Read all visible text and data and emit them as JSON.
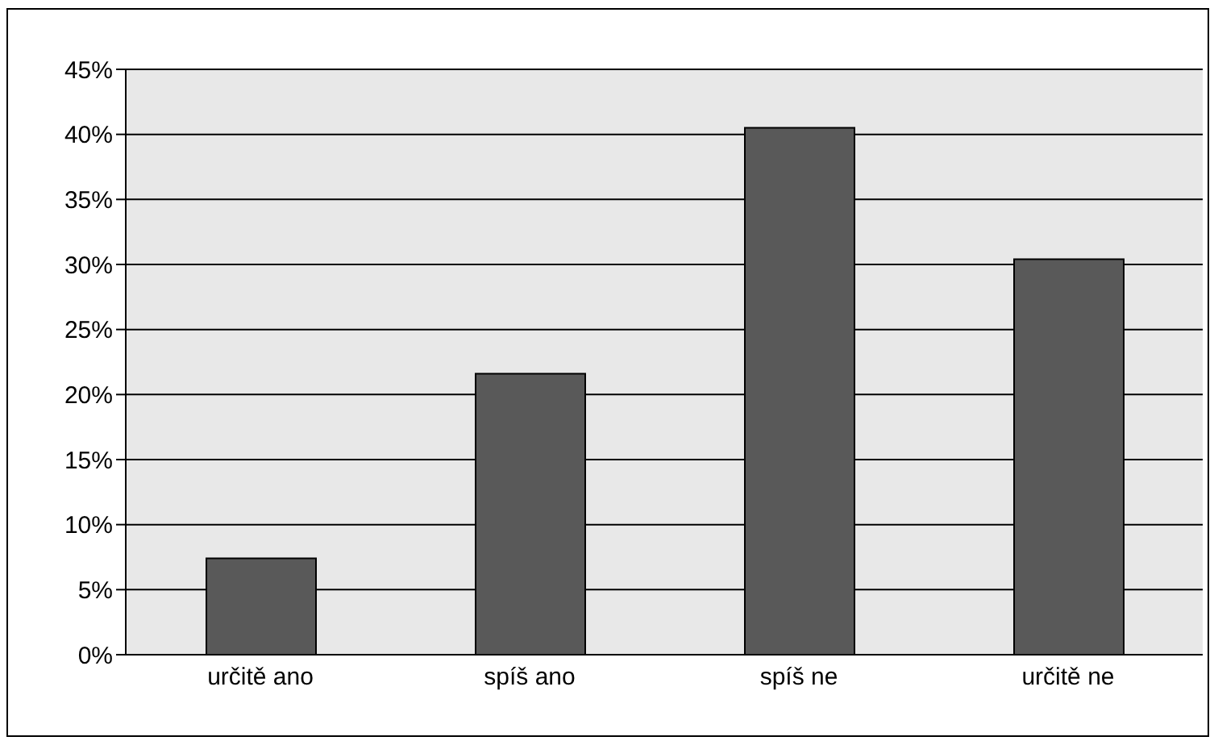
{
  "chart_data": {
    "type": "bar",
    "categories": [
      "určitě ano",
      "spíš ano",
      "spíš ne",
      "určitě ne"
    ],
    "values": [
      7.4,
      21.6,
      40.5,
      30.4
    ],
    "color": "#595959",
    "ylim": [
      0,
      45
    ],
    "yticks": [
      {
        "value": 0,
        "label": "0%"
      },
      {
        "value": 5,
        "label": "5%"
      },
      {
        "value": 10,
        "label": "10%"
      },
      {
        "value": 15,
        "label": "15%"
      },
      {
        "value": 20,
        "label": "20%"
      },
      {
        "value": 25,
        "label": "25%"
      },
      {
        "value": 30,
        "label": "30%"
      },
      {
        "value": 35,
        "label": "35%"
      },
      {
        "value": 40,
        "label": "40%"
      },
      {
        "value": 45,
        "label": "45%"
      }
    ],
    "grid": "y",
    "legend": false
  }
}
